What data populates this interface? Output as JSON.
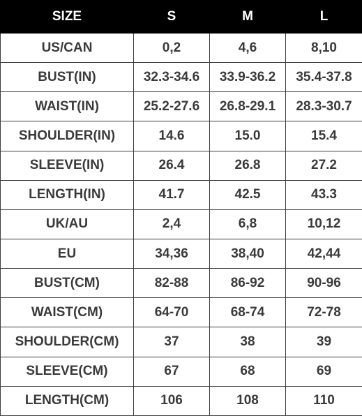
{
  "header": {
    "size_label": "SIZE",
    "sizes": [
      "S",
      "M",
      "L"
    ]
  },
  "rows": [
    {
      "label": "US/CAN",
      "values": [
        "0,2",
        "4,6",
        "8,10"
      ]
    },
    {
      "label": "BUST(IN)",
      "values": [
        "32.3-34.6",
        "33.9-36.2",
        "35.4-37.8"
      ]
    },
    {
      "label": "WAIST(IN)",
      "values": [
        "25.2-27.6",
        "26.8-29.1",
        "28.3-30.7"
      ]
    },
    {
      "label": "SHOULDER(IN)",
      "values": [
        "14.6",
        "15.0",
        "15.4"
      ]
    },
    {
      "label": "SLEEVE(IN)",
      "values": [
        "26.4",
        "26.8",
        "27.2"
      ]
    },
    {
      "label": "LENGTH(IN)",
      "values": [
        "41.7",
        "42.5",
        "43.3"
      ]
    },
    {
      "label": "UK/AU",
      "values": [
        "2,4",
        "6,8",
        "10,12"
      ]
    },
    {
      "label": "EU",
      "values": [
        "34,36",
        "38,40",
        "42,44"
      ]
    },
    {
      "label": "BUST(CM)",
      "values": [
        "82-88",
        "86-92",
        "90-96"
      ]
    },
    {
      "label": "WAIST(CM)",
      "values": [
        "64-70",
        "68-74",
        "72-78"
      ]
    },
    {
      "label": "SHOULDER(CM)",
      "values": [
        "37",
        "38",
        "39"
      ]
    },
    {
      "label": "SLEEVE(CM)",
      "values": [
        "67",
        "68",
        "69"
      ]
    },
    {
      "label": "LENGTH(CM)",
      "values": [
        "106",
        "108",
        "110"
      ]
    }
  ],
  "colors": {
    "header_bg": "#000000",
    "header_text": "#ffffff",
    "cell_text": "#3a3a3a",
    "border": "#3c3c3c"
  }
}
